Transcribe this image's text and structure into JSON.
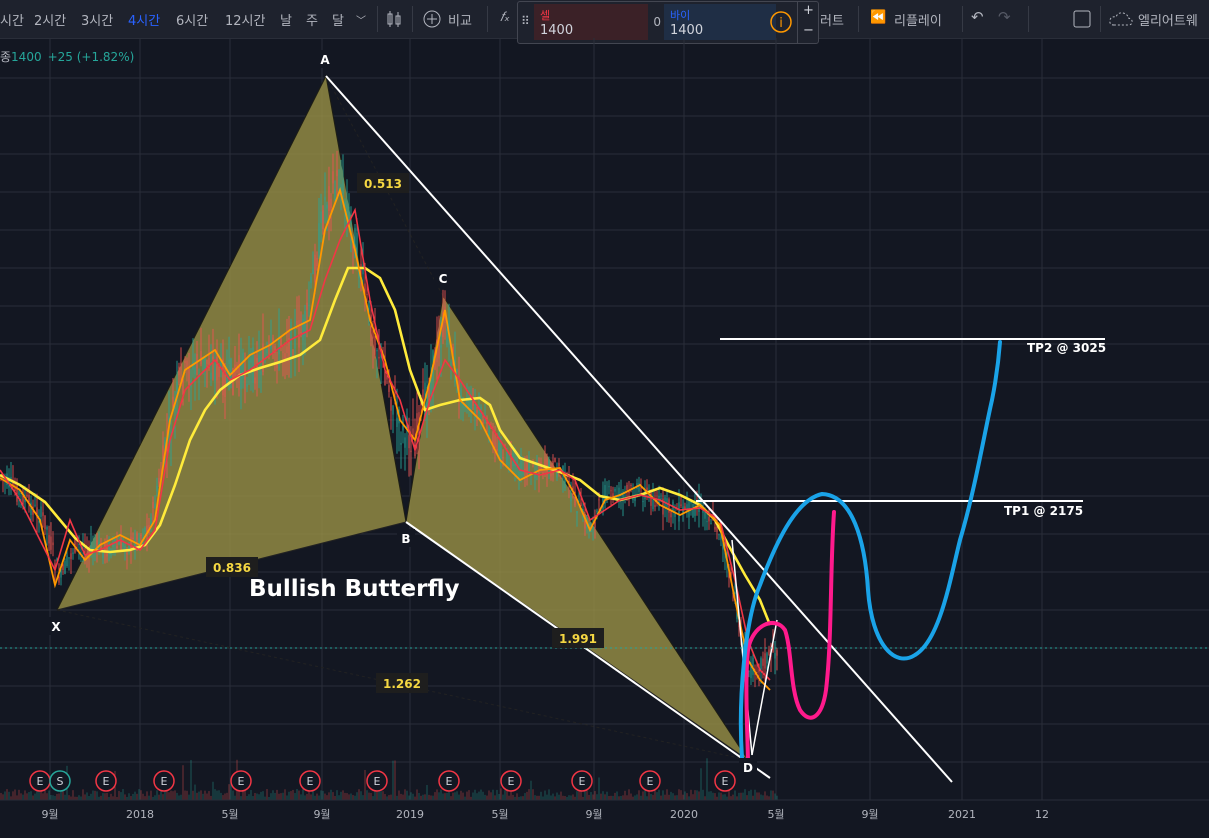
{
  "toolbar": {
    "intervals": [
      "시간",
      "2시간",
      "3시간",
      "4시간",
      "6시간",
      "12시간",
      "날",
      "주",
      "달"
    ],
    "active_interval": "4시간",
    "compare_label": "비교",
    "alert_label": "러트",
    "replay_label": "리플레이",
    "elliott_label": "엘리어트웨"
  },
  "trade_panel": {
    "sell_label": "셀",
    "sell_price": "1400",
    "spread": "0",
    "buy_label": "바이",
    "buy_price": "1400",
    "plus": "+",
    "minus": "−"
  },
  "legend": {
    "prefix": "종",
    "price": "1400",
    "change": "+25 (+1.82%)"
  },
  "colors": {
    "background": "#131722",
    "pattern_fill": "#9c9347",
    "ma_yellow": "#ffeb3b",
    "ma_orange": "#ff9800",
    "ma_red": "#f23645",
    "blue_path": "#1aa3e8",
    "pink_path": "#ff1a8c",
    "up_candle": "#26a69a",
    "down_candle": "#ef5350"
  },
  "chart_data": {
    "type": "line",
    "title": "Bullish Butterfly",
    "x_tick_labels": [
      "9월",
      "2018",
      "5월",
      "9월",
      "2019",
      "5월",
      "9월",
      "2020",
      "5월",
      "9월",
      "2021",
      "12"
    ],
    "pattern_points": [
      "X",
      "A",
      "B",
      "C",
      "D"
    ],
    "ratios": [
      "0.513",
      "0.836",
      "1.991",
      "1.262"
    ],
    "targets": [
      {
        "label": "TP1 @ 2175",
        "value": 2175
      },
      {
        "label": "TP2 @ 3025",
        "value": 3025
      }
    ],
    "current_price": 1400,
    "earnings_markers": [
      "E",
      "S",
      "E",
      "E",
      "E",
      "E",
      "E",
      "E",
      "E",
      "E",
      "E",
      "E"
    ]
  }
}
